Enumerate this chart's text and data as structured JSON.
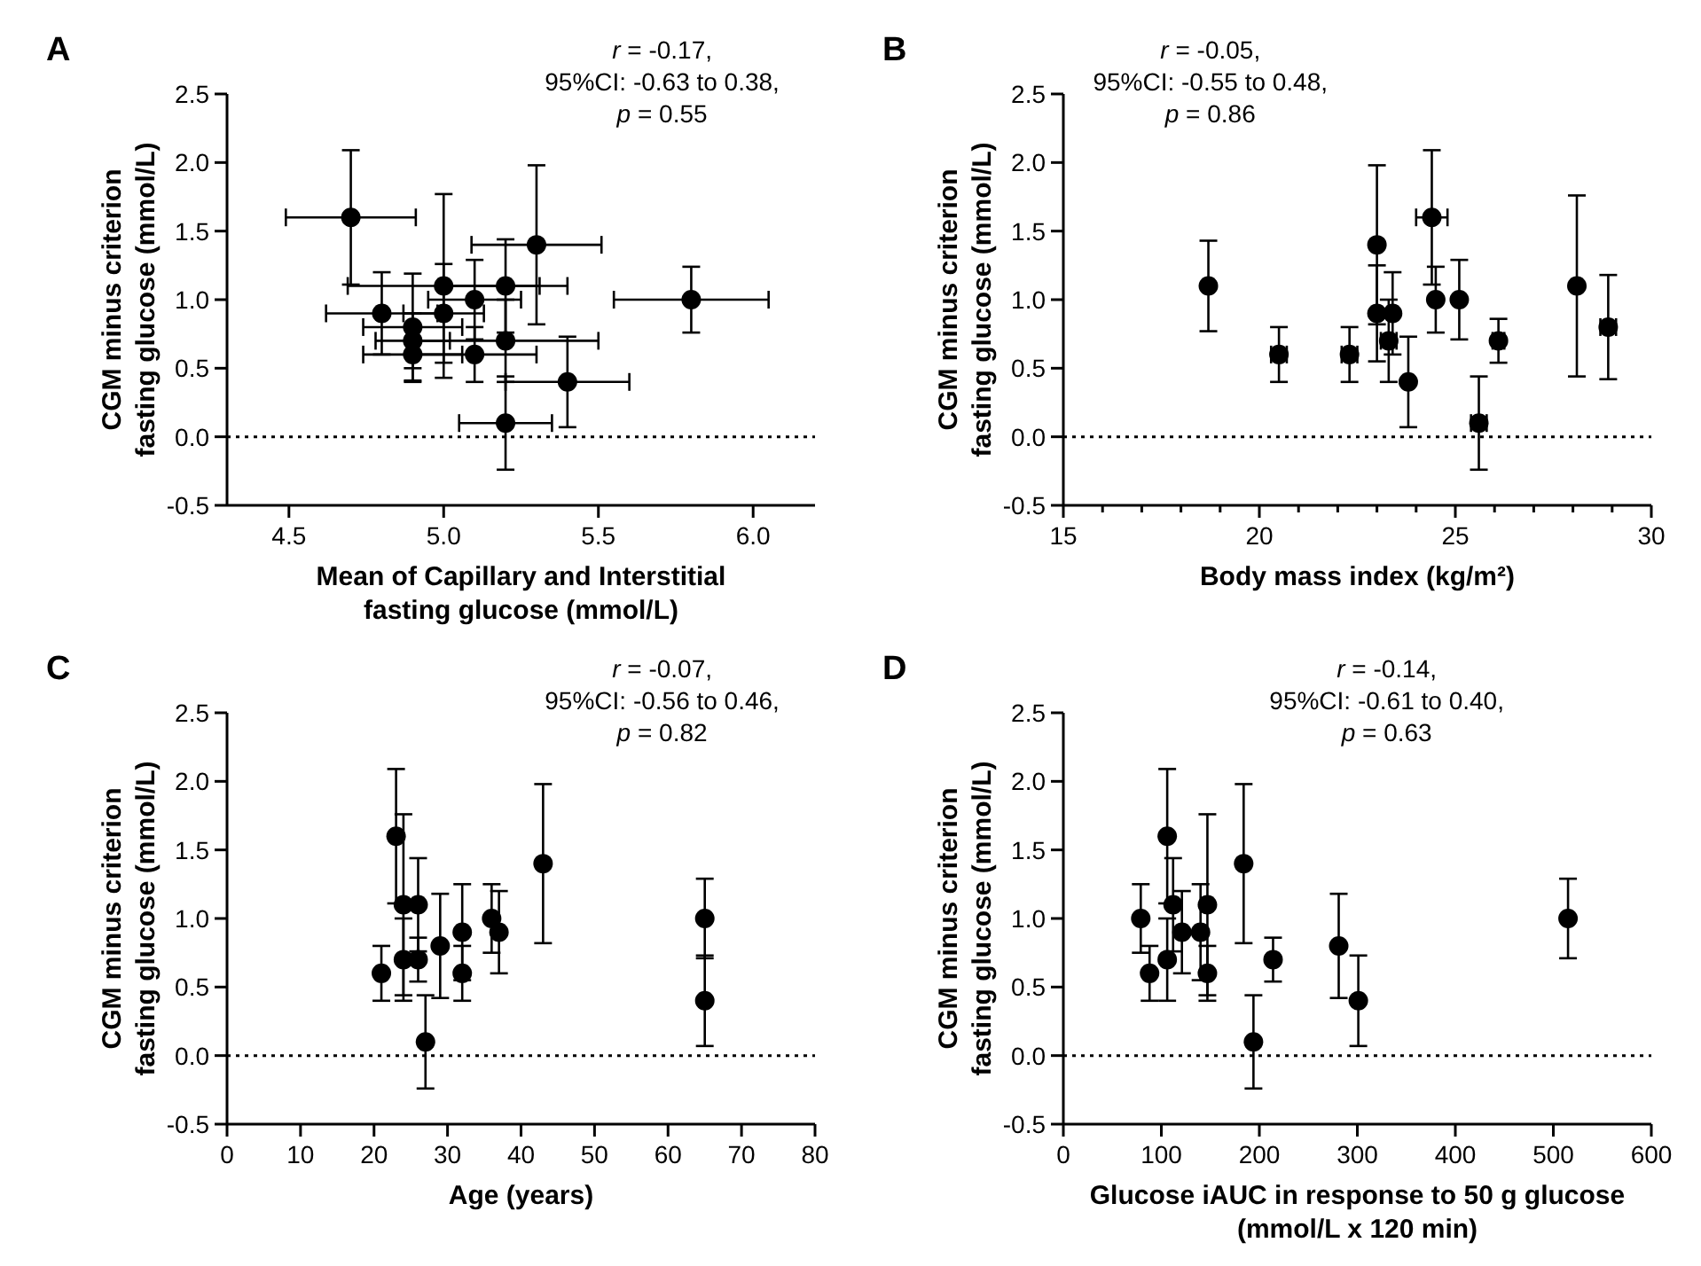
{
  "chart_data": [
    {
      "type": "scatter",
      "title": "A",
      "xlabel": "Mean of Capillary and Interstitial\nfasting glucose (mmol/L)",
      "ylabel": "CGM minus criterion\nfasting glucose (mmol/L)",
      "annotations": [
        "r = -0.17,\n95%CI: -0.63 to 0.38,\np = 0.55"
      ],
      "x": [
        4.7,
        5.3,
        5.8,
        5.0,
        5.0,
        4.8,
        4.9,
        4.9,
        4.9,
        5.1,
        5.1,
        5.2,
        5.2,
        5.2,
        5.4
      ],
      "series": [
        {
          "color": "#000000",
          "values": [
            1.6,
            1.4,
            1.0,
            1.1,
            0.9,
            0.9,
            0.8,
            0.7,
            0.6,
            1.0,
            0.6,
            1.1,
            0.7,
            0.1,
            0.4
          ],
          "errors": [
            0.49,
            0.58,
            0.24,
            0.67,
            0.36,
            0.3,
            0.39,
            0.2,
            0.2,
            0.29,
            0.2,
            0.34,
            0.3,
            0.34,
            0.33
          ],
          "xerrors": [
            0.21,
            0.21,
            0.25,
            0.31,
            0.13,
            0.18,
            0.16,
            0.12,
            0.16,
            0.15,
            0.2,
            0.2,
            0.3,
            0.15,
            0.2
          ]
        }
      ],
      "xlim": [
        4.3,
        6.2
      ],
      "xticks": [
        {
          "value": 4.5,
          "label": "4.5"
        },
        {
          "value": 5,
          "label": "5.0"
        },
        {
          "value": 5.5,
          "label": "5.5"
        },
        {
          "value": 6,
          "label": "6.0"
        }
      ],
      "ylim": [
        -0.5,
        2.5
      ],
      "yticks": [
        {
          "value": -0.5,
          "label": "-0.5"
        },
        {
          "value": 0,
          "label": "0.0"
        },
        {
          "value": 0.5,
          "label": "0.5"
        },
        {
          "value": 1,
          "label": "1.0"
        },
        {
          "value": 1.5,
          "label": "1.5"
        },
        {
          "value": 2,
          "label": "2.0"
        },
        {
          "value": 2.5,
          "label": "2.5"
        }
      ],
      "ref_lines": [
        {
          "axis": "y",
          "value": 0,
          "color": "#000000",
          "line_style": "dotted"
        }
      ],
      "marker": "circle",
      "grid": false
    },
    {
      "type": "scatter",
      "title": "B",
      "xlabel": "Body mass index (kg/m²)",
      "ylabel": "CGM minus criterion\nfasting glucose (mmol/L)",
      "annotations": [
        "r = -0.05,\n95%CI: -0.55 to 0.48,\np = 0.86"
      ],
      "x": [
        18.7,
        20.5,
        22.3,
        23.0,
        23.0,
        23.4,
        23.3,
        23.8,
        24.4,
        24.5,
        25.1,
        25.6,
        26.1,
        28.1,
        28.9
      ],
      "series": [
        {
          "color": "#000000",
          "values": [
            1.1,
            0.6,
            0.6,
            1.4,
            0.9,
            0.9,
            0.7,
            0.4,
            1.6,
            1.0,
            1.0,
            0.1,
            0.7,
            1.1,
            0.8
          ],
          "errors": [
            0.33,
            0.2,
            0.2,
            0.58,
            0.35,
            0.3,
            0.3,
            0.33,
            0.49,
            0.24,
            0.29,
            0.34,
            0.16,
            0.66,
            0.38
          ],
          "xerrors": [
            null,
            0.2,
            0.2,
            null,
            null,
            null,
            0.2,
            null,
            0.4,
            null,
            null,
            0.2,
            0.15,
            null,
            0.2
          ]
        }
      ],
      "xlim": [
        15,
        30
      ],
      "xticks": [
        15,
        {
          "value": 16,
          "label": null
        },
        {
          "value": 17,
          "label": null
        },
        {
          "value": 18,
          "label": null
        },
        {
          "value": 19,
          "label": null
        },
        20,
        {
          "value": 21,
          "label": null
        },
        {
          "value": 22,
          "label": null
        },
        {
          "value": 23,
          "label": null
        },
        {
          "value": 24,
          "label": null
        },
        25,
        {
          "value": 26,
          "label": null
        },
        {
          "value": 27,
          "label": null
        },
        {
          "value": 28,
          "label": null
        },
        {
          "value": 29,
          "label": null
        },
        30
      ],
      "ylim": [
        -0.5,
        2.5
      ],
      "yticks": [
        {
          "value": -0.5,
          "label": "-0.5"
        },
        {
          "value": 0,
          "label": "0.0"
        },
        {
          "value": 0.5,
          "label": "0.5"
        },
        {
          "value": 1,
          "label": "1.0"
        },
        {
          "value": 1.5,
          "label": "1.5"
        },
        {
          "value": 2,
          "label": "2.0"
        },
        {
          "value": 2.5,
          "label": "2.5"
        }
      ],
      "ref_lines": [
        {
          "axis": "y",
          "value": 0,
          "color": "#000000",
          "line_style": "dotted"
        }
      ],
      "marker": "circle",
      "grid": false
    },
    {
      "type": "scatter",
      "title": "C",
      "xlabel": "Age (years)",
      "ylabel": "CGM minus criterion\nfasting glucose (mmol/L)",
      "annotations": [
        "r = -0.07,\n95%CI: -0.56 to 0.46,\np = 0.82"
      ],
      "x": [
        21,
        23,
        24,
        24,
        26,
        26,
        27,
        29,
        32,
        32,
        36,
        37,
        43,
        65,
        65
      ],
      "series": [
        {
          "color": "#000000",
          "values": [
            0.6,
            1.6,
            1.1,
            0.7,
            1.1,
            0.7,
            0.1,
            0.8,
            0.9,
            0.6,
            1.0,
            0.9,
            1.4,
            1.0,
            0.4
          ],
          "errors": [
            0.2,
            0.49,
            0.66,
            0.3,
            0.34,
            0.16,
            0.34,
            0.38,
            0.35,
            0.2,
            0.25,
            0.3,
            0.58,
            0.29,
            0.33
          ]
        }
      ],
      "xlim": [
        0,
        80
      ],
      "xticks": [
        0,
        10,
        20,
        30,
        40,
        50,
        60,
        70,
        80
      ],
      "ylim": [
        -0.5,
        2.5
      ],
      "yticks": [
        {
          "value": -0.5,
          "label": "-0.5"
        },
        {
          "value": 0,
          "label": "0.0"
        },
        {
          "value": 0.5,
          "label": "0.5"
        },
        {
          "value": 1,
          "label": "1.0"
        },
        {
          "value": 1.5,
          "label": "1.5"
        },
        {
          "value": 2,
          "label": "2.0"
        },
        {
          "value": 2.5,
          "label": "2.5"
        }
      ],
      "ref_lines": [
        {
          "axis": "y",
          "value": 0,
          "color": "#000000",
          "line_style": "dotted"
        }
      ],
      "marker": "circle",
      "grid": false
    },
    {
      "type": "scatter",
      "title": "D",
      "xlabel": "Glucose iAUC in response to 50 g glucose\n(mmol/L x 120 min)",
      "ylabel": "CGM minus criterion\nfasting glucose (mmol/L)",
      "annotations": [
        "r = -0.14,\n95%CI: -0.61 to 0.40,\np = 0.63"
      ],
      "x": [
        79,
        88,
        106,
        106,
        112,
        121,
        140,
        147,
        147,
        184,
        194,
        214,
        281,
        301,
        515
      ],
      "series": [
        {
          "color": "#000000",
          "values": [
            1.0,
            0.6,
            1.6,
            0.7,
            1.1,
            0.9,
            0.9,
            1.1,
            0.6,
            1.4,
            0.1,
            0.7,
            0.8,
            0.4,
            1.0
          ],
          "errors": [
            0.25,
            0.2,
            0.49,
            0.3,
            0.34,
            0.3,
            0.35,
            0.66,
            0.2,
            0.58,
            0.34,
            0.16,
            0.38,
            0.33,
            0.29
          ]
        }
      ],
      "xlim": [
        0,
        600
      ],
      "xticks": [
        0,
        100,
        200,
        300,
        400,
        500,
        600
      ],
      "ylim": [
        -0.5,
        2.5
      ],
      "yticks": [
        {
          "value": -0.5,
          "label": "-0.5"
        },
        {
          "value": 0,
          "label": "0.0"
        },
        {
          "value": 0.5,
          "label": "0.5"
        },
        {
          "value": 1,
          "label": "1.0"
        },
        {
          "value": 1.5,
          "label": "1.5"
        },
        {
          "value": 2,
          "label": "2.0"
        },
        {
          "value": 2.5,
          "label": "2.5"
        }
      ],
      "ref_lines": [
        {
          "axis": "y",
          "value": 0,
          "color": "#000000",
          "line_style": "dotted"
        }
      ],
      "marker": "circle",
      "grid": false
    }
  ]
}
